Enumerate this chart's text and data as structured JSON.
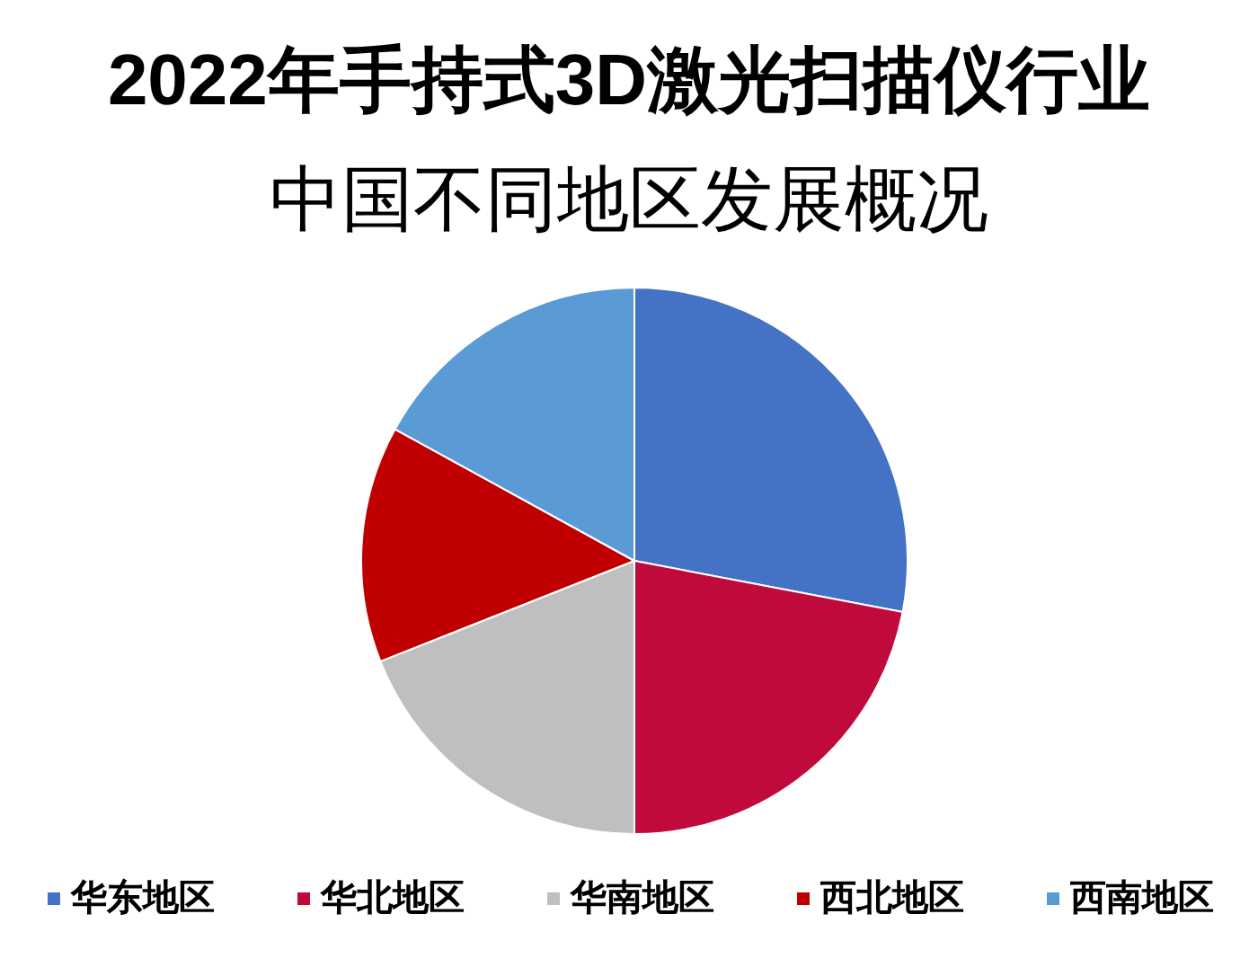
{
  "chart_data": {
    "type": "pie",
    "title": "2022年手持式3D激光扫描仪行业",
    "subtitle": "中国不同地区发展概况",
    "categories": [
      "华东地区",
      "华北地区",
      "华南地区",
      "西北地区",
      "西南地区"
    ],
    "values": [
      28,
      22,
      19,
      14,
      17
    ],
    "colors": [
      "#4472c4",
      "#c00a3c",
      "#bfbfbf",
      "#c00000",
      "#5b9bd5"
    ],
    "legend": "bottom"
  }
}
